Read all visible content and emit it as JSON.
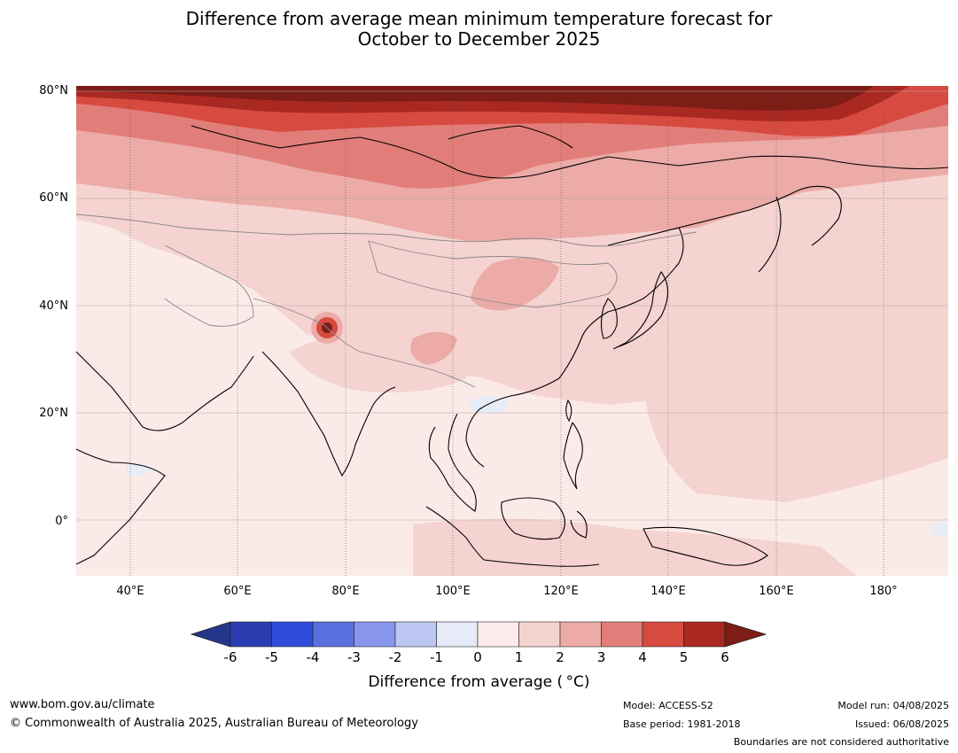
{
  "title": {
    "line1": "Difference from average mean minimum temperature forecast for",
    "line2": "October to December 2025"
  },
  "map": {
    "lat_labels": [
      "80°N",
      "60°N",
      "40°N",
      "20°N",
      "0°"
    ],
    "lon_labels": [
      "40°E",
      "60°E",
      "80°E",
      "100°E",
      "120°E",
      "140°E",
      "160°E",
      "180°"
    ],
    "extent": {
      "lon_min": 30,
      "lon_max": 192,
      "lat_min": -10,
      "lat_max": 81
    },
    "features": [
      "Russia / Arctic coast",
      "Central Asia",
      "China",
      "Mongolia",
      "India",
      "Tibetan Plateau",
      "Southeast Asia",
      "Indonesia",
      "Papua New Guinea",
      "Japan",
      "Korea",
      "Arabian Peninsula",
      "Horn of Africa"
    ],
    "colors": {
      "anomaly_0_1": "#fbebe8",
      "anomaly_1_2": "#f5d3d0",
      "anomaly_2_3": "#ecaba7",
      "anomaly_3_4": "#e27e79",
      "anomaly_4_5": "#d74a40",
      "anomaly_5_6": "#a92922",
      "anomaly_gt6": "#7c1d16",
      "anomaly_neg1_0": "#e8ecf9"
    }
  },
  "colorbar": {
    "ticks": [
      "-6",
      "-5",
      "-4",
      "-3",
      "-2",
      "-1",
      "0",
      "1",
      "2",
      "3",
      "4",
      "5",
      "6"
    ],
    "colors": [
      "#24368c",
      "#2b3cb0",
      "#2f4ddb",
      "#5a6fe0",
      "#8796ea",
      "#bdc7f4",
      "#e6eaf9",
      "#fdeceb",
      "#f5d3d0",
      "#ecaba7",
      "#e27e79",
      "#d74a40",
      "#a92922",
      "#7c1d16"
    ],
    "label": "Difference from average ( °C)"
  },
  "footer": {
    "website": "www.bom.gov.au/climate",
    "copyright": "© Commonwealth of Australia 2025, Australian Bureau of Meteorology",
    "model": "Model: ACCESS-S2",
    "base_period": "Base period: 1981-2018",
    "model_run": "Model run: 04/08/2025",
    "issued": "Issued: 06/08/2025",
    "disclaimer": "Boundaries are not considered authoritative"
  }
}
